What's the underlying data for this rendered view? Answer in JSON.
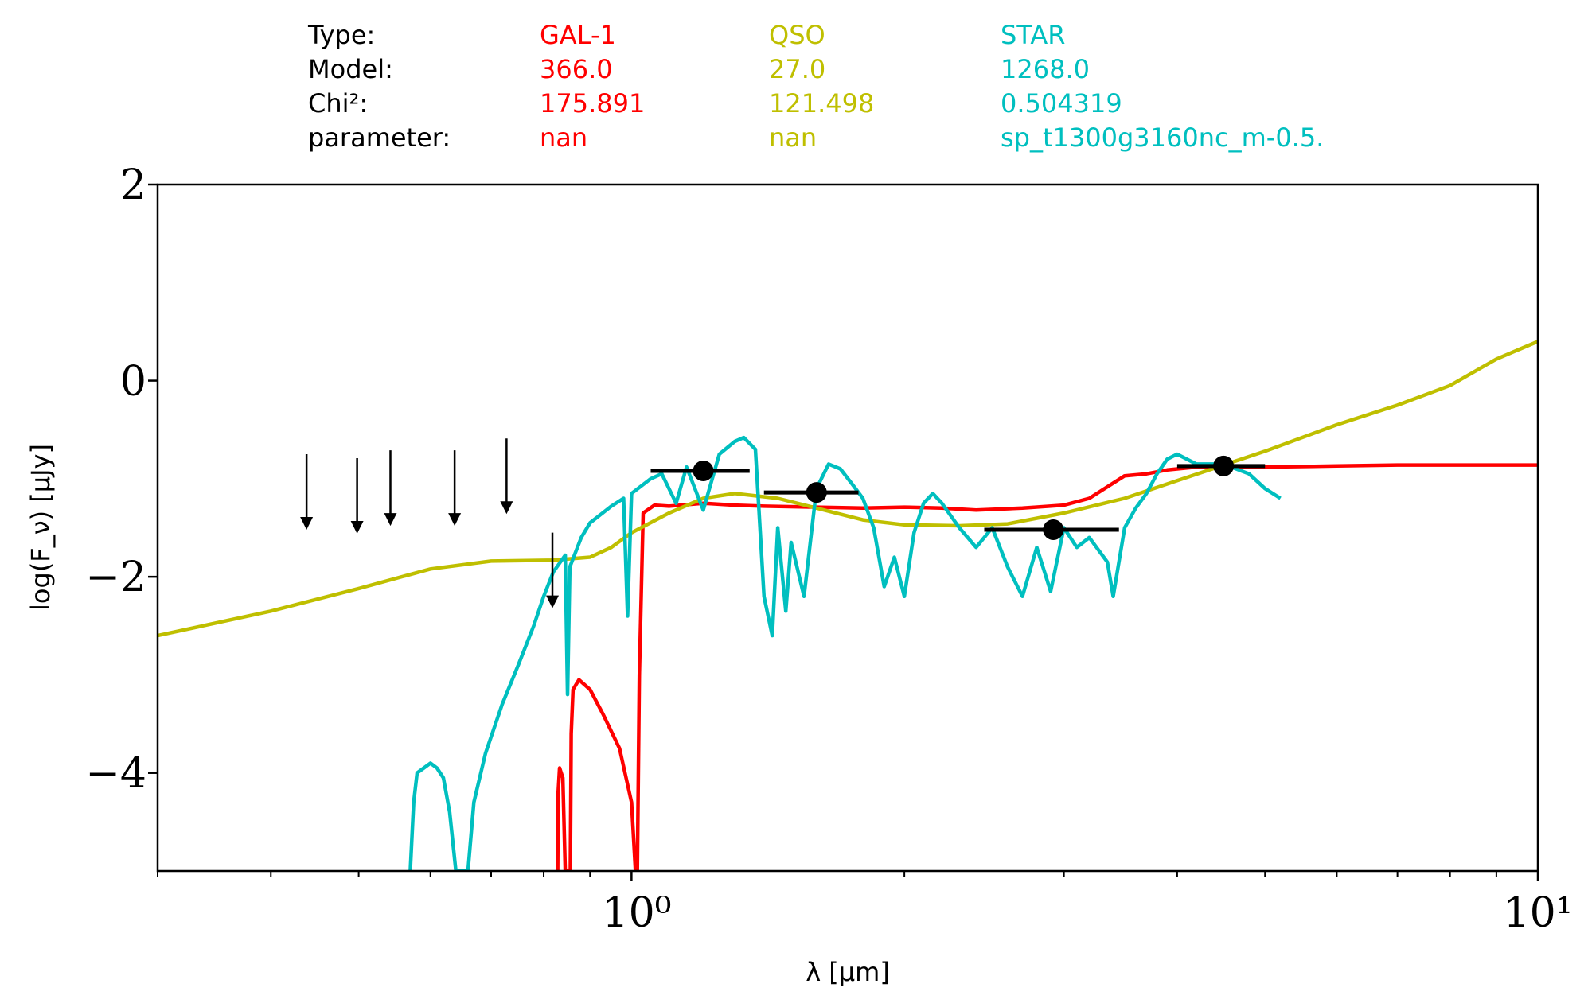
{
  "header": {
    "row_labels": [
      "Type:",
      "Model:",
      "Chi²:",
      "parameter:"
    ],
    "columns": [
      {
        "color": "#ff0000",
        "values": [
          "GAL-1",
          "366.0",
          "175.891",
          "nan"
        ]
      },
      {
        "color": "#bfbf00",
        "values": [
          "QSO",
          "27.0",
          "121.498",
          "nan"
        ]
      },
      {
        "color": "#00bfbf",
        "values": [
          "STAR",
          "1268.0",
          "0.504319",
          "sp_t1300g3160nc_m-0.5."
        ]
      }
    ]
  },
  "chart_data": {
    "type": "line",
    "xlabel": "λ [μm]",
    "ylabel": "log(F_ν) [μJy]",
    "xscale": "log",
    "xlim": [
      0.3,
      10
    ],
    "ylim": [
      -5,
      2
    ],
    "x_tick_labels": [
      "10⁰",
      "10¹"
    ],
    "y_tick_labels": [
      "−4",
      "−2",
      "0",
      "2"
    ],
    "grid": false,
    "series": [
      {
        "name": "GAL-1",
        "color": "#ff0000",
        "points": [
          [
            0.829,
            -5.0
          ],
          [
            0.83,
            -4.2
          ],
          [
            0.833,
            -3.95
          ],
          [
            0.84,
            -4.05
          ],
          [
            0.845,
            -5.0
          ],
          [
            0.856,
            -5.0
          ],
          [
            0.858,
            -3.6
          ],
          [
            0.862,
            -3.15
          ],
          [
            0.875,
            -3.05
          ],
          [
            0.9,
            -3.15
          ],
          [
            0.93,
            -3.4
          ],
          [
            0.97,
            -3.75
          ],
          [
            1.0,
            -4.3
          ],
          [
            1.01,
            -5.0
          ],
          [
            1.015,
            -5.0
          ],
          [
            1.02,
            -3.0
          ],
          [
            1.03,
            -1.35
          ],
          [
            1.06,
            -1.27
          ],
          [
            1.1,
            -1.28
          ],
          [
            1.2,
            -1.25
          ],
          [
            1.3,
            -1.27
          ],
          [
            1.4,
            -1.28
          ],
          [
            1.6,
            -1.29
          ],
          [
            1.8,
            -1.3
          ],
          [
            2.0,
            -1.29
          ],
          [
            2.2,
            -1.3
          ],
          [
            2.4,
            -1.32
          ],
          [
            2.7,
            -1.3
          ],
          [
            3.0,
            -1.27
          ],
          [
            3.2,
            -1.2
          ],
          [
            3.5,
            -0.97
          ],
          [
            3.7,
            -0.95
          ],
          [
            3.9,
            -0.91
          ],
          [
            4.2,
            -0.88
          ],
          [
            5.0,
            -0.88
          ],
          [
            6.0,
            -0.87
          ],
          [
            7.0,
            -0.86
          ],
          [
            8.0,
            -0.86
          ],
          [
            10.0,
            -0.86
          ]
        ]
      },
      {
        "name": "QSO",
        "color": "#bfbf00",
        "points": [
          [
            0.3,
            -2.6
          ],
          [
            0.4,
            -2.35
          ],
          [
            0.5,
            -2.12
          ],
          [
            0.6,
            -1.92
          ],
          [
            0.7,
            -1.84
          ],
          [
            0.82,
            -1.83
          ],
          [
            0.9,
            -1.8
          ],
          [
            0.95,
            -1.7
          ],
          [
            1.0,
            -1.55
          ],
          [
            1.1,
            -1.35
          ],
          [
            1.2,
            -1.2
          ],
          [
            1.3,
            -1.15
          ],
          [
            1.45,
            -1.2
          ],
          [
            1.6,
            -1.3
          ],
          [
            1.8,
            -1.42
          ],
          [
            2.0,
            -1.47
          ],
          [
            2.3,
            -1.48
          ],
          [
            2.6,
            -1.46
          ],
          [
            3.0,
            -1.35
          ],
          [
            3.5,
            -1.2
          ],
          [
            4.0,
            -1.02
          ],
          [
            5.0,
            -0.72
          ],
          [
            6.0,
            -0.45
          ],
          [
            7.0,
            -0.25
          ],
          [
            8.0,
            -0.05
          ],
          [
            9.0,
            0.22
          ],
          [
            10.0,
            0.4
          ]
        ]
      },
      {
        "name": "STAR",
        "color": "#00bfbf",
        "points": [
          [
            0.57,
            -5.0
          ],
          [
            0.575,
            -4.3
          ],
          [
            0.58,
            -4.0
          ],
          [
            0.59,
            -3.95
          ],
          [
            0.6,
            -3.9
          ],
          [
            0.61,
            -3.95
          ],
          [
            0.62,
            -4.05
          ],
          [
            0.63,
            -4.4
          ],
          [
            0.64,
            -5.0
          ],
          [
            0.66,
            -5.0
          ],
          [
            0.67,
            -4.3
          ],
          [
            0.69,
            -3.8
          ],
          [
            0.72,
            -3.3
          ],
          [
            0.75,
            -2.9
          ],
          [
            0.78,
            -2.5
          ],
          [
            0.8,
            -2.2
          ],
          [
            0.82,
            -1.95
          ],
          [
            0.845,
            -1.78
          ],
          [
            0.85,
            -3.2
          ],
          [
            0.855,
            -1.9
          ],
          [
            0.88,
            -1.6
          ],
          [
            0.9,
            -1.45
          ],
          [
            0.95,
            -1.28
          ],
          [
            0.98,
            -1.2
          ],
          [
            0.99,
            -2.4
          ],
          [
            1.0,
            -1.15
          ],
          [
            1.05,
            -1.0
          ],
          [
            1.08,
            -0.95
          ],
          [
            1.12,
            -1.25
          ],
          [
            1.15,
            -0.88
          ],
          [
            1.2,
            -1.32
          ],
          [
            1.25,
            -0.75
          ],
          [
            1.3,
            -0.62
          ],
          [
            1.33,
            -0.58
          ],
          [
            1.37,
            -0.7
          ],
          [
            1.4,
            -2.2
          ],
          [
            1.43,
            -2.6
          ],
          [
            1.45,
            -1.5
          ],
          [
            1.48,
            -2.35
          ],
          [
            1.5,
            -1.65
          ],
          [
            1.55,
            -2.2
          ],
          [
            1.6,
            -1.1
          ],
          [
            1.65,
            -0.85
          ],
          [
            1.7,
            -0.9
          ],
          [
            1.75,
            -1.05
          ],
          [
            1.8,
            -1.2
          ],
          [
            1.85,
            -1.5
          ],
          [
            1.9,
            -2.1
          ],
          [
            1.95,
            -1.8
          ],
          [
            2.0,
            -2.2
          ],
          [
            2.05,
            -1.55
          ],
          [
            2.1,
            -1.25
          ],
          [
            2.15,
            -1.15
          ],
          [
            2.2,
            -1.25
          ],
          [
            2.3,
            -1.5
          ],
          [
            2.4,
            -1.7
          ],
          [
            2.5,
            -1.5
          ],
          [
            2.6,
            -1.9
          ],
          [
            2.7,
            -2.2
          ],
          [
            2.8,
            -1.7
          ],
          [
            2.9,
            -2.15
          ],
          [
            3.0,
            -1.5
          ],
          [
            3.1,
            -1.7
          ],
          [
            3.2,
            -1.6
          ],
          [
            3.35,
            -1.85
          ],
          [
            3.4,
            -2.2
          ],
          [
            3.5,
            -1.5
          ],
          [
            3.6,
            -1.3
          ],
          [
            3.7,
            -1.15
          ],
          [
            3.8,
            -0.95
          ],
          [
            3.9,
            -0.8
          ],
          [
            4.0,
            -0.75
          ],
          [
            4.2,
            -0.85
          ],
          [
            4.5,
            -0.85
          ],
          [
            4.8,
            -0.95
          ],
          [
            5.0,
            -1.1
          ],
          [
            5.2,
            -1.2
          ]
        ]
      }
    ],
    "detections": [
      {
        "x": 1.2,
        "y": -0.92,
        "x_low": 1.05,
        "x_high": 1.35
      },
      {
        "x": 1.6,
        "y": -1.14,
        "x_low": 1.4,
        "x_high": 1.78
      },
      {
        "x": 2.92,
        "y": -1.52,
        "x_low": 2.45,
        "x_high": 3.45
      },
      {
        "x": 4.5,
        "y": -0.87,
        "x_low": 4.0,
        "x_high": 5.0
      }
    ],
    "upper_limits": [
      {
        "x": 0.438,
        "y": -0.75
      },
      {
        "x": 0.498,
        "y": -0.79
      },
      {
        "x": 0.542,
        "y": -0.71
      },
      {
        "x": 0.638,
        "y": -0.71
      },
      {
        "x": 0.728,
        "y": -0.59
      },
      {
        "x": 0.818,
        "y": -1.55
      }
    ]
  }
}
